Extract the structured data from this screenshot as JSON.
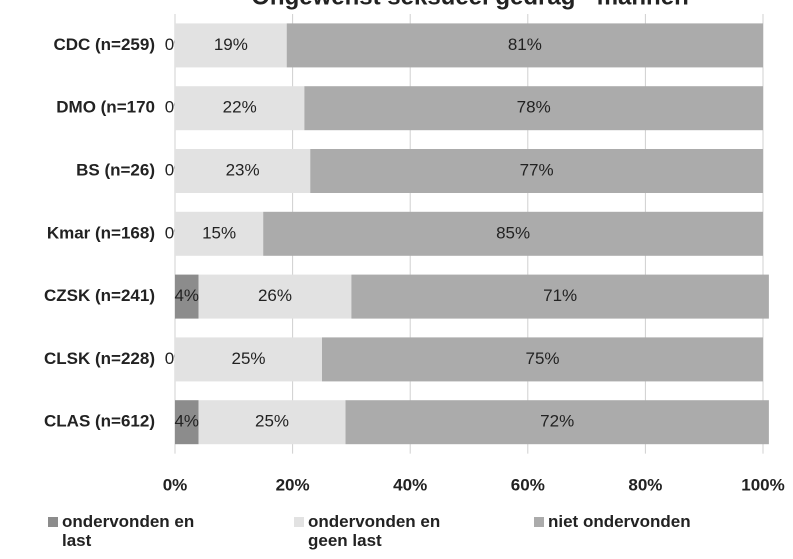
{
  "chart_data": {
    "type": "stacked_bar_horizontal",
    "title": "Ongewenst seksueel gedrag - mannen",
    "categories": [
      "CDC (n=259)",
      "DMO (n=170",
      "BS (n=26)",
      "Kmar (n=168)",
      "CZSK (n=241)",
      "CLSK (n=228)",
      "CLAS (n=612)"
    ],
    "series": [
      {
        "name": "ondervonden en last",
        "color": "#8c8c8c",
        "values": [
          0,
          0,
          0,
          0,
          4,
          0,
          4
        ],
        "value_labels": [
          "0%",
          "0%",
          "0%",
          "0%",
          "4%",
          "0%",
          "4%"
        ]
      },
      {
        "name": "ondervonden en geen last",
        "color": "#e2e2e2",
        "values": [
          19,
          22,
          23,
          15,
          26,
          25,
          25
        ],
        "value_labels": [
          "19%",
          "22%",
          "23%",
          "15%",
          "26%",
          "25%",
          "25%"
        ]
      },
      {
        "name": "niet ondervonden",
        "color": "#ababab",
        "values": [
          81,
          78,
          77,
          85,
          71,
          75,
          72
        ],
        "value_labels": [
          "81%",
          "78%",
          "77%",
          "85%",
          "71%",
          "75%",
          "72%"
        ]
      }
    ],
    "xlim": [
      0,
      100
    ],
    "xticks": [
      {
        "value": 0,
        "label": "0%"
      },
      {
        "value": 20,
        "label": "20%"
      },
      {
        "value": 40,
        "label": "40%"
      },
      {
        "value": 60,
        "label": "60%"
      },
      {
        "value": 80,
        "label": "80%"
      },
      {
        "value": 100,
        "label": "100%"
      }
    ],
    "grid": true
  }
}
